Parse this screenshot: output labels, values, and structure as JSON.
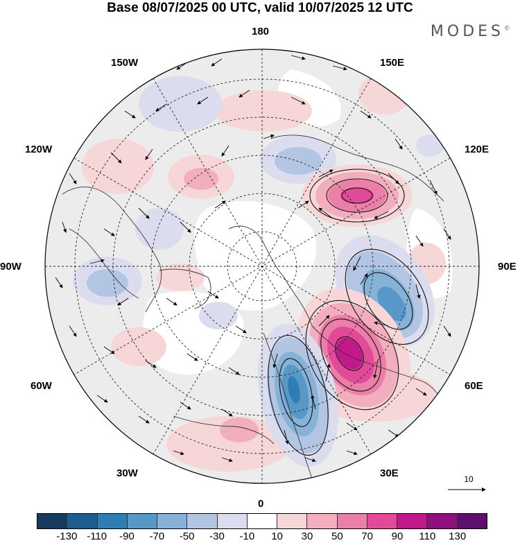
{
  "title": "Base 08/07/2025 00 UTC, valid 10/07/2025 12 UTC",
  "brand": "MODES",
  "brand_mark": "©",
  "longitude_labels": {
    "top": "180",
    "bottom": "0",
    "left": "90W",
    "right": "90E",
    "upper_left_1": "150W",
    "upper_left_2": "120W",
    "upper_right_1": "150E",
    "upper_right_2": "120E",
    "lower_left_1": "60W",
    "lower_left_2": "30W",
    "lower_right_1": "60E",
    "lower_right_2": "30E"
  },
  "reference_vector_label": "10",
  "colorbar": {
    "ticks": [
      "-130",
      "-110",
      "-90",
      "-70",
      "-50",
      "-30",
      "-10",
      "10",
      "30",
      "50",
      "70",
      "90",
      "110",
      "130"
    ],
    "colors": [
      "#153a5e",
      "#1d5e8f",
      "#2f7db5",
      "#5898c9",
      "#87b2d8",
      "#b2c6e3",
      "#dbdcee",
      "#ffffff",
      "#f7d6d8",
      "#f3aebe",
      "#ec7fa8",
      "#e04a98",
      "#c1198a",
      "#8f0f7c",
      "#5e0e6c"
    ]
  },
  "colors": {
    "neutral_fill": "#ececec",
    "coast": "#333333",
    "grid": "#222222"
  }
}
